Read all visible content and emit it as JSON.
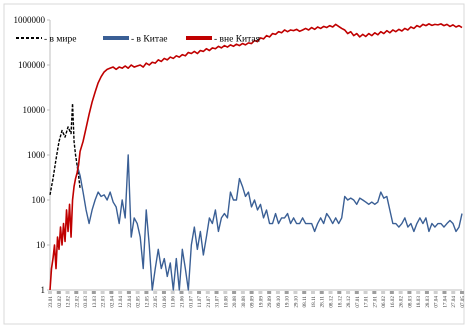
{
  "chart_data": {
    "type": "line",
    "scale_y": "log",
    "ylim": [
      1,
      1000000
    ],
    "y_ticks": [
      "1",
      "10",
      "100",
      "1000",
      "10000",
      "100000",
      "1000000"
    ],
    "grid": false,
    "legend_position": "top-left",
    "x_tick_labels": [
      "23.01",
      "02.02",
      "12.02",
      "22.02",
      "03.03",
      "13.03",
      "22.03",
      "02.04",
      "12.04",
      "22.04",
      "02.05",
      "12.05",
      "22.05",
      "01.06",
      "11.06",
      "21.06",
      "01.07",
      "11.07",
      "21.07",
      "31.07",
      "10.08",
      "20.08",
      "30.08",
      "09.09",
      "19.09",
      "29.09",
      "09.10",
      "19.10",
      "29.10",
      "08.11",
      "18.11",
      "28.11",
      "08.12",
      "18.12",
      "28.12",
      "07.01",
      "17.01",
      "27.01",
      "06.02",
      "16.02",
      "26.02",
      "08.03",
      "18.03",
      "28.03",
      "07.04",
      "17.04",
      "27.04",
      "07.05"
    ],
    "series": [
      {
        "name": "- в мире",
        "color": "#000000",
        "dash": true,
        "points": [
          [
            0,
            130
          ],
          [
            1,
            300
          ],
          [
            2,
            800
          ],
          [
            3,
            2000
          ],
          [
            4,
            3500
          ],
          [
            5,
            2500
          ],
          [
            6,
            4200
          ],
          [
            7,
            3000
          ],
          [
            7.5,
            14000
          ],
          [
            8,
            2000
          ],
          [
            8.5,
            1000
          ],
          [
            9,
            600
          ],
          [
            9.5,
            350
          ],
          [
            10,
            180
          ]
        ]
      },
      {
        "name": "-  в Китае",
        "color": "#3a5f95",
        "points": [
          [
            9,
            600
          ],
          [
            10,
            350
          ],
          [
            11,
            150
          ],
          [
            12,
            60
          ],
          [
            13,
            30
          ],
          [
            14,
            60
          ],
          [
            15,
            100
          ],
          [
            16,
            150
          ],
          [
            17,
            120
          ],
          [
            18,
            130
          ],
          [
            19,
            100
          ],
          [
            20,
            150
          ],
          [
            21,
            90
          ],
          [
            22,
            70
          ],
          [
            23,
            30
          ],
          [
            24,
            100
          ],
          [
            25,
            40
          ],
          [
            26,
            1000
          ],
          [
            27,
            15
          ],
          [
            28,
            40
          ],
          [
            29,
            30
          ],
          [
            30,
            15
          ],
          [
            31,
            3
          ],
          [
            32,
            60
          ],
          [
            33,
            10
          ],
          [
            34,
            1
          ],
          [
            35,
            3
          ],
          [
            36,
            8
          ],
          [
            37,
            3
          ],
          [
            38,
            5
          ],
          [
            39,
            2
          ],
          [
            40,
            4
          ],
          [
            41,
            1
          ],
          [
            42,
            5
          ],
          [
            43,
            1
          ],
          [
            44,
            8
          ],
          [
            45,
            3
          ],
          [
            46,
            1
          ],
          [
            47,
            10
          ],
          [
            48,
            25
          ],
          [
            49,
            8
          ],
          [
            50,
            20
          ],
          [
            51,
            6
          ],
          [
            52,
            15
          ],
          [
            53,
            40
          ],
          [
            54,
            30
          ],
          [
            55,
            60
          ],
          [
            56,
            20
          ],
          [
            57,
            40
          ],
          [
            58,
            50
          ],
          [
            59,
            40
          ],
          [
            60,
            150
          ],
          [
            61,
            100
          ],
          [
            62,
            100
          ],
          [
            63,
            300
          ],
          [
            64,
            200
          ],
          [
            65,
            120
          ],
          [
            66,
            150
          ],
          [
            67,
            70
          ],
          [
            68,
            100
          ],
          [
            69,
            60
          ],
          [
            70,
            80
          ],
          [
            71,
            40
          ],
          [
            72,
            60
          ],
          [
            73,
            30
          ],
          [
            74,
            30
          ],
          [
            75,
            50
          ],
          [
            76,
            30
          ],
          [
            77,
            40
          ],
          [
            78,
            40
          ],
          [
            79,
            50
          ],
          [
            80,
            30
          ],
          [
            81,
            40
          ],
          [
            82,
            30
          ],
          [
            83,
            30
          ],
          [
            84,
            40
          ],
          [
            85,
            30
          ],
          [
            86,
            30
          ],
          [
            87,
            30
          ],
          [
            88,
            20
          ],
          [
            89,
            30
          ],
          [
            90,
            40
          ],
          [
            91,
            30
          ],
          [
            92,
            50
          ],
          [
            93,
            40
          ],
          [
            94,
            30
          ],
          [
            95,
            40
          ],
          [
            96,
            30
          ],
          [
            97,
            40
          ],
          [
            98,
            120
          ],
          [
            99,
            100
          ],
          [
            100,
            110
          ],
          [
            101,
            100
          ],
          [
            102,
            80
          ],
          [
            103,
            110
          ],
          [
            104,
            100
          ],
          [
            105,
            90
          ],
          [
            106,
            80
          ],
          [
            107,
            90
          ],
          [
            108,
            80
          ],
          [
            109,
            90
          ],
          [
            110,
            150
          ],
          [
            111,
            110
          ],
          [
            112,
            120
          ],
          [
            113,
            60
          ],
          [
            114,
            30
          ],
          [
            115,
            30
          ],
          [
            116,
            25
          ],
          [
            117,
            30
          ],
          [
            118,
            40
          ],
          [
            119,
            25
          ],
          [
            120,
            30
          ],
          [
            121,
            20
          ],
          [
            122,
            30
          ],
          [
            123,
            40
          ],
          [
            124,
            30
          ],
          [
            125,
            40
          ],
          [
            126,
            20
          ],
          [
            127,
            30
          ],
          [
            128,
            25
          ],
          [
            129,
            30
          ],
          [
            130,
            30
          ],
          [
            131,
            25
          ],
          [
            132,
            30
          ],
          [
            133,
            35
          ],
          [
            134,
            30
          ],
          [
            135,
            20
          ],
          [
            136,
            25
          ],
          [
            137,
            50
          ]
        ]
      },
      {
        "name": "- вне Китая",
        "color": "#c00000",
        "points": [
          [
            0,
            1
          ],
          [
            0.5,
            3
          ],
          [
            1,
            5
          ],
          [
            1.5,
            10
          ],
          [
            2,
            3
          ],
          [
            2.5,
            15
          ],
          [
            3,
            8
          ],
          [
            3.5,
            25
          ],
          [
            4,
            10
          ],
          [
            4.5,
            30
          ],
          [
            5,
            12
          ],
          [
            5.5,
            60
          ],
          [
            6,
            20
          ],
          [
            6.5,
            80
          ],
          [
            7,
            15
          ],
          [
            7.5,
            100
          ],
          [
            8,
            200
          ],
          [
            8.5,
            300
          ],
          [
            9,
            400
          ],
          [
            9.5,
            600
          ],
          [
            10,
            1200
          ],
          [
            11,
            2000
          ],
          [
            12,
            4000
          ],
          [
            13,
            8000
          ],
          [
            14,
            15000
          ],
          [
            15,
            25000
          ],
          [
            16,
            40000
          ],
          [
            17,
            55000
          ],
          [
            18,
            70000
          ],
          [
            19,
            80000
          ],
          [
            20,
            85000
          ],
          [
            21,
            90000
          ],
          [
            22,
            80000
          ],
          [
            23,
            90000
          ],
          [
            24,
            85000
          ],
          [
            25,
            95000
          ],
          [
            26,
            85000
          ],
          [
            27,
            100000
          ],
          [
            28,
            90000
          ],
          [
            29,
            95000
          ],
          [
            30,
            100000
          ],
          [
            31,
            90000
          ],
          [
            32,
            110000
          ],
          [
            33,
            100000
          ],
          [
            34,
            115000
          ],
          [
            35,
            110000
          ],
          [
            36,
            130000
          ],
          [
            37,
            120000
          ],
          [
            38,
            140000
          ],
          [
            39,
            130000
          ],
          [
            40,
            150000
          ],
          [
            41,
            140000
          ],
          [
            42,
            160000
          ],
          [
            43,
            150000
          ],
          [
            44,
            170000
          ],
          [
            45,
            160000
          ],
          [
            46,
            190000
          ],
          [
            47,
            180000
          ],
          [
            48,
            200000
          ],
          [
            49,
            180000
          ],
          [
            50,
            210000
          ],
          [
            51,
            200000
          ],
          [
            52,
            230000
          ],
          [
            53,
            210000
          ],
          [
            54,
            240000
          ],
          [
            55,
            230000
          ],
          [
            56,
            260000
          ],
          [
            57,
            240000
          ],
          [
            58,
            270000
          ],
          [
            59,
            250000
          ],
          [
            60,
            280000
          ],
          [
            61,
            260000
          ],
          [
            62,
            290000
          ],
          [
            63,
            270000
          ],
          [
            64,
            300000
          ],
          [
            65,
            280000
          ],
          [
            66,
            310000
          ],
          [
            67,
            300000
          ],
          [
            68,
            350000
          ],
          [
            69,
            330000
          ],
          [
            70,
            400000
          ],
          [
            71,
            380000
          ],
          [
            72,
            450000
          ],
          [
            73,
            420000
          ],
          [
            74,
            500000
          ],
          [
            75,
            480000
          ],
          [
            76,
            550000
          ],
          [
            77,
            520000
          ],
          [
            78,
            600000
          ],
          [
            79,
            550000
          ],
          [
            80,
            600000
          ],
          [
            81,
            580000
          ],
          [
            82,
            620000
          ],
          [
            83,
            560000
          ],
          [
            84,
            600000
          ],
          [
            85,
            650000
          ],
          [
            86,
            600000
          ],
          [
            87,
            680000
          ],
          [
            88,
            620000
          ],
          [
            89,
            700000
          ],
          [
            90,
            650000
          ],
          [
            91,
            720000
          ],
          [
            92,
            680000
          ],
          [
            93,
            750000
          ],
          [
            94,
            700000
          ],
          [
            95,
            800000
          ],
          [
            96,
            720000
          ],
          [
            97,
            650000
          ],
          [
            98,
            600000
          ],
          [
            99,
            500000
          ],
          [
            100,
            550000
          ],
          [
            101,
            450000
          ],
          [
            102,
            500000
          ],
          [
            103,
            420000
          ],
          [
            104,
            480000
          ],
          [
            105,
            430000
          ],
          [
            106,
            500000
          ],
          [
            107,
            450000
          ],
          [
            108,
            520000
          ],
          [
            109,
            470000
          ],
          [
            110,
            550000
          ],
          [
            111,
            500000
          ],
          [
            112,
            580000
          ],
          [
            113,
            520000
          ],
          [
            114,
            600000
          ],
          [
            115,
            550000
          ],
          [
            116,
            620000
          ],
          [
            117,
            570000
          ],
          [
            118,
            650000
          ],
          [
            119,
            600000
          ],
          [
            120,
            700000
          ],
          [
            121,
            650000
          ],
          [
            122,
            750000
          ],
          [
            123,
            700000
          ],
          [
            124,
            800000
          ],
          [
            125,
            750000
          ],
          [
            126,
            820000
          ],
          [
            127,
            760000
          ],
          [
            128,
            800000
          ],
          [
            129,
            780000
          ],
          [
            130,
            820000
          ],
          [
            131,
            750000
          ],
          [
            132,
            800000
          ],
          [
            133,
            720000
          ],
          [
            134,
            780000
          ],
          [
            135,
            700000
          ],
          [
            136,
            750000
          ],
          [
            137,
            680000
          ]
        ]
      }
    ]
  }
}
